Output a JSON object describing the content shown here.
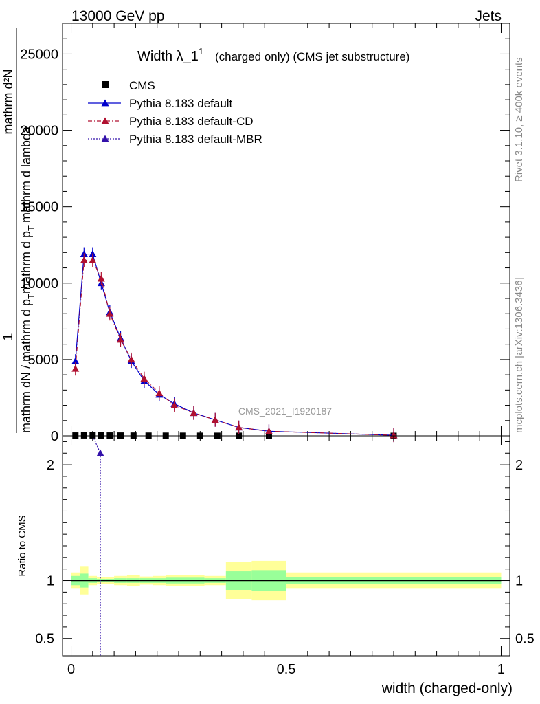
{
  "header": {
    "left": "13000 GeV pp",
    "right": "Jets"
  },
  "side_labels": {
    "rivet": "Rivet 3.1.10, ≥ 400k events",
    "mcplots": "mcplots.cern.ch [arXiv:1306.3436]"
  },
  "chart_data": [
    {
      "type": "line",
      "panel": "main",
      "title": "Width λ_1",
      "title_superscript": "1",
      "subtitle": "(charged only) (CMS jet substructure)",
      "watermark": "CMS_2021_I1920187",
      "ylabel_numerator": "1",
      "ylabel_text": "mathrm d N / mathrm d p_T mathrm d p_T mathrm d lambda",
      "ylabel_lines": [
        "1",
        "mathrm d²N",
        "mathrm dN / mathrm d p",
        "T",
        "mathrm d p",
        "T",
        "mathrm d lambda"
      ],
      "ylim": [
        0,
        27000
      ],
      "yticks": [
        0,
        5000,
        10000,
        15000,
        20000,
        25000
      ],
      "yticklabels": [
        "0",
        "5000",
        "10000",
        "15000",
        "20000",
        "25000"
      ],
      "xlim": [
        -0.02,
        1.02
      ],
      "legend_position": "top-left",
      "series": [
        {
          "name": "CMS",
          "color": "#000000",
          "marker": "square",
          "x": [
            0.01,
            0.03,
            0.05,
            0.07,
            0.09,
            0.115,
            0.145,
            0.18,
            0.22,
            0.26,
            0.3,
            0.34,
            0.39,
            0.46,
            0.75
          ],
          "y": [
            20,
            25,
            25,
            22,
            20,
            18,
            15,
            12,
            10,
            8,
            6,
            5,
            5,
            3,
            1
          ]
        },
        {
          "name": "Pythia 8.183 default",
          "color": "#0000cc",
          "marker": "triangle",
          "line": "solid",
          "x": [
            0.01,
            0.03,
            0.05,
            0.07,
            0.09,
            0.115,
            0.14,
            0.17,
            0.205,
            0.24,
            0.285,
            0.335,
            0.39,
            0.46,
            0.75
          ],
          "y": [
            4900,
            11900,
            11900,
            10000,
            8100,
            6400,
            4900,
            3600,
            2700,
            2100,
            1500,
            1050,
            550,
            300,
            40
          ]
        },
        {
          "name": "Pythia 8.183 default-CD",
          "color": "#b01030",
          "marker": "triangle",
          "line": "dashed",
          "x": [
            0.01,
            0.03,
            0.05,
            0.07,
            0.09,
            0.115,
            0.14,
            0.17,
            0.205,
            0.24,
            0.285,
            0.335,
            0.39,
            0.46,
            0.75
          ],
          "y": [
            4400,
            11500,
            11500,
            10300,
            8000,
            6300,
            5000,
            3750,
            2800,
            2000,
            1500,
            1050,
            550,
            300,
            40
          ]
        },
        {
          "name": "Pythia 8.183 default-MBR",
          "color": "#3311aa",
          "marker": "triangle",
          "line": "dotted",
          "x": [],
          "y": []
        }
      ]
    },
    {
      "type": "line",
      "panel": "ratio",
      "ylabel": "Ratio to CMS",
      "xlabel": "width (charged-only)",
      "ylim": [
        0.35,
        2.25
      ],
      "yticks": [
        0.5,
        1,
        2
      ],
      "yticklabels": [
        "0.5",
        "1",
        "2"
      ],
      "xlim": [
        -0.02,
        1.02
      ],
      "xticks": [
        0,
        0.5,
        1
      ],
      "xticklabels": [
        "0",
        "0.5",
        "1"
      ],
      "uncertainty_bins": [
        {
          "x0": 0.0,
          "x1": 0.02,
          "stat": 0.04,
          "total": 0.07
        },
        {
          "x0": 0.02,
          "x1": 0.04,
          "stat": 0.06,
          "total": 0.12
        },
        {
          "x0": 0.04,
          "x1": 0.06,
          "stat": 0.02,
          "total": 0.04
        },
        {
          "x0": 0.06,
          "x1": 0.08,
          "stat": 0.015,
          "total": 0.03
        },
        {
          "x0": 0.08,
          "x1": 0.1,
          "stat": 0.015,
          "total": 0.03
        },
        {
          "x0": 0.1,
          "x1": 0.13,
          "stat": 0.02,
          "total": 0.04
        },
        {
          "x0": 0.13,
          "x1": 0.16,
          "stat": 0.02,
          "total": 0.045
        },
        {
          "x0": 0.16,
          "x1": 0.19,
          "stat": 0.02,
          "total": 0.035
        },
        {
          "x0": 0.19,
          "x1": 0.22,
          "stat": 0.02,
          "total": 0.04
        },
        {
          "x0": 0.22,
          "x1": 0.26,
          "stat": 0.025,
          "total": 0.05
        },
        {
          "x0": 0.26,
          "x1": 0.31,
          "stat": 0.025,
          "total": 0.05
        },
        {
          "x0": 0.31,
          "x1": 0.36,
          "stat": 0.02,
          "total": 0.04
        },
        {
          "x0": 0.36,
          "x1": 0.42,
          "stat": 0.08,
          "total": 0.16
        },
        {
          "x0": 0.42,
          "x1": 0.5,
          "stat": 0.09,
          "total": 0.17
        },
        {
          "x0": 0.5,
          "x1": 1.0,
          "stat": 0.03,
          "total": 0.07
        }
      ],
      "series": [
        {
          "name": "Pythia 8.183 default-MBR",
          "color": "#3311aa",
          "marker": "triangle",
          "line": "dotted",
          "x": [
            0.06,
            0.07
          ],
          "y": [
            2.25,
            2.1
          ]
        }
      ]
    }
  ]
}
